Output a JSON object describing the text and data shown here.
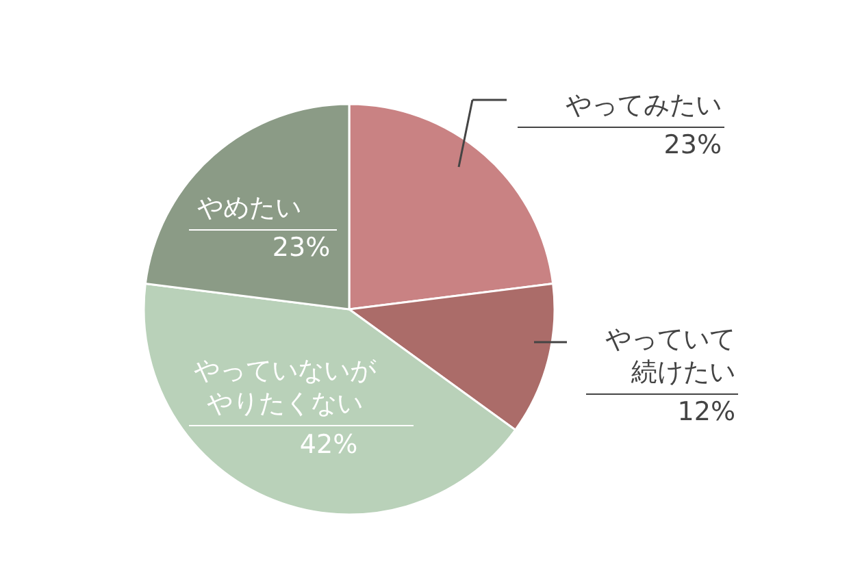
{
  "chart_data": {
    "type": "pie",
    "categories": [
      "やってみたい",
      "やっていて続けたい",
      "やっていないがやりたくない",
      "やめたい"
    ],
    "values": [
      23,
      12,
      42,
      23
    ],
    "colors": [
      "#c98283",
      "#ab6c69",
      "#b9d1b9",
      "#8b9b86"
    ],
    "value_labels": [
      "23%",
      "12%",
      "42%",
      "23%"
    ]
  }
}
